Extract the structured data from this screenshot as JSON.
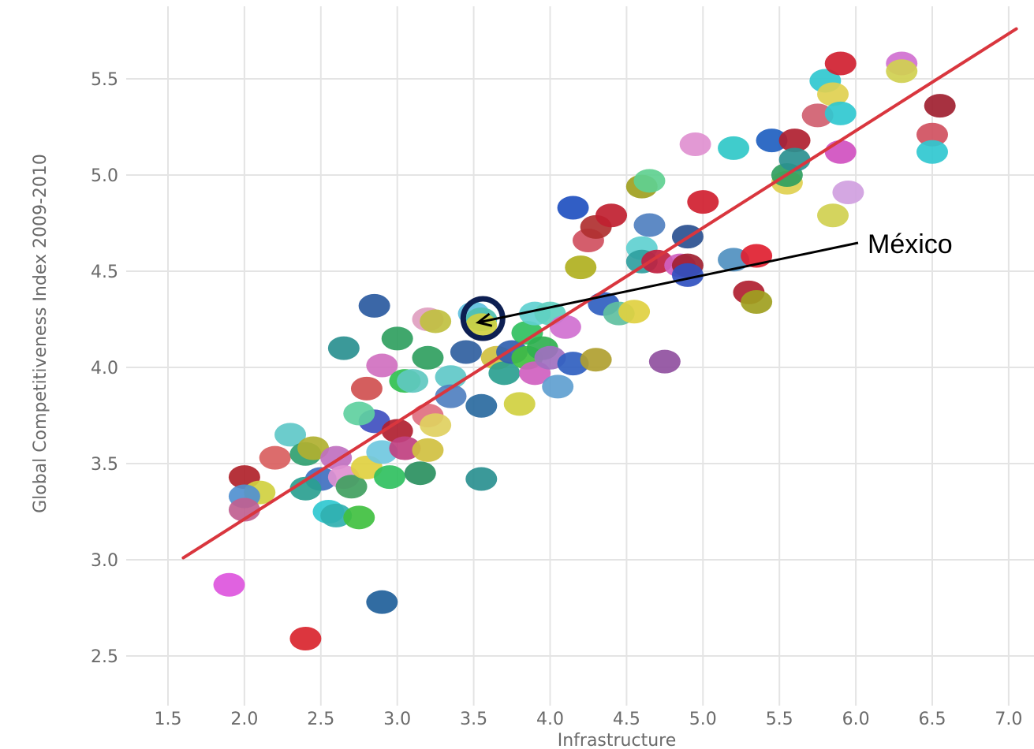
{
  "chart_data": {
    "type": "scatter",
    "title": "",
    "xlabel": "Infrastructure",
    "ylabel": "Global Competitiveness Index 2009-2010",
    "xlim": [
      1.5,
      7.0
    ],
    "ylim": [
      2.5,
      5.5
    ],
    "x_ticks": [
      "1.5",
      "2.0",
      "2.5",
      "3.0",
      "3.5",
      "4.0",
      "4.5",
      "5.0",
      "5.5",
      "6.0",
      "6.5",
      "7.0"
    ],
    "y_ticks": [
      "2.5",
      "3.0",
      "3.5",
      "4.0",
      "4.5",
      "5.0",
      "5.5"
    ],
    "grid": true,
    "trend_line": {
      "color": "#d9363e",
      "start": [
        1.6,
        3.01
      ],
      "end": [
        7.05,
        5.76
      ]
    },
    "annotation": {
      "label": "México",
      "point": [
        3.55,
        4.25
      ]
    },
    "points": [
      {
        "x": 1.9,
        "y": 2.87,
        "color": "#dd55dd"
      },
      {
        "x": 2.4,
        "y": 2.59,
        "color": "#d9252e"
      },
      {
        "x": 2.9,
        "y": 2.78,
        "color": "#1f5f9a"
      },
      {
        "x": 2.0,
        "y": 3.43,
        "color": "#b0222a"
      },
      {
        "x": 2.1,
        "y": 3.35,
        "color": "#d0d040"
      },
      {
        "x": 2.0,
        "y": 3.33,
        "color": "#5090d0"
      },
      {
        "x": 2.0,
        "y": 3.26,
        "color": "#c06090"
      },
      {
        "x": 2.2,
        "y": 3.53,
        "color": "#d96060"
      },
      {
        "x": 2.3,
        "y": 3.65,
        "color": "#60c8c8"
      },
      {
        "x": 2.4,
        "y": 3.55,
        "color": "#30a070"
      },
      {
        "x": 2.45,
        "y": 3.58,
        "color": "#b0b030"
      },
      {
        "x": 2.5,
        "y": 3.42,
        "color": "#4070c0"
      },
      {
        "x": 2.4,
        "y": 3.37,
        "color": "#2aa090"
      },
      {
        "x": 2.55,
        "y": 3.25,
        "color": "#30c8d0"
      },
      {
        "x": 2.6,
        "y": 3.23,
        "color": "#30b0b0"
      },
      {
        "x": 2.6,
        "y": 3.53,
        "color": "#c070c0"
      },
      {
        "x": 2.65,
        "y": 3.43,
        "color": "#e090d0"
      },
      {
        "x": 2.7,
        "y": 3.38,
        "color": "#40a060"
      },
      {
        "x": 2.75,
        "y": 3.22,
        "color": "#40c040"
      },
      {
        "x": 2.8,
        "y": 3.48,
        "color": "#e0d040"
      },
      {
        "x": 2.85,
        "y": 3.72,
        "color": "#4050c0"
      },
      {
        "x": 2.75,
        "y": 3.76,
        "color": "#60d0a0"
      },
      {
        "x": 2.8,
        "y": 3.89,
        "color": "#d05050"
      },
      {
        "x": 2.9,
        "y": 3.56,
        "color": "#70c8e0"
      },
      {
        "x": 2.95,
        "y": 3.43,
        "color": "#30c060"
      },
      {
        "x": 2.65,
        "y": 4.1,
        "color": "#2a9090"
      },
      {
        "x": 2.85,
        "y": 4.32,
        "color": "#2a5aa0"
      },
      {
        "x": 2.9,
        "y": 4.01,
        "color": "#d070c0"
      },
      {
        "x": 3.0,
        "y": 4.15,
        "color": "#30a060"
      },
      {
        "x": 3.0,
        "y": 3.67,
        "color": "#b02030"
      },
      {
        "x": 3.05,
        "y": 3.58,
        "color": "#c04080"
      },
      {
        "x": 3.05,
        "y": 3.93,
        "color": "#30c050"
      },
      {
        "x": 3.1,
        "y": 3.93,
        "color": "#60c8c0"
      },
      {
        "x": 3.15,
        "y": 3.45,
        "color": "#2a9060"
      },
      {
        "x": 3.2,
        "y": 3.57,
        "color": "#d0c040"
      },
      {
        "x": 3.2,
        "y": 4.05,
        "color": "#30a060"
      },
      {
        "x": 3.2,
        "y": 3.75,
        "color": "#e07080"
      },
      {
        "x": 3.25,
        "y": 3.7,
        "color": "#e0d060"
      },
      {
        "x": 3.2,
        "y": 4.25,
        "color": "#e0a0c0"
      },
      {
        "x": 3.25,
        "y": 4.24,
        "color": "#c0c040"
      },
      {
        "x": 3.35,
        "y": 3.95,
        "color": "#60c8c8"
      },
      {
        "x": 3.35,
        "y": 3.85,
        "color": "#5080c0"
      },
      {
        "x": 3.45,
        "y": 4.08,
        "color": "#3060a0"
      },
      {
        "x": 3.5,
        "y": 4.28,
        "color": "#60c0e0"
      },
      {
        "x": 3.55,
        "y": 4.25,
        "color": "#50c0b0"
      },
      {
        "x": 3.55,
        "y": 4.22,
        "color": "#d0d040"
      },
      {
        "x": 3.55,
        "y": 3.8,
        "color": "#2a6aa0"
      },
      {
        "x": 3.55,
        "y": 3.42,
        "color": "#2a9090"
      },
      {
        "x": 3.65,
        "y": 4.05,
        "color": "#d0c040"
      },
      {
        "x": 3.7,
        "y": 3.97,
        "color": "#2aa090"
      },
      {
        "x": 3.75,
        "y": 4.08,
        "color": "#3060b0"
      },
      {
        "x": 3.8,
        "y": 3.81,
        "color": "#d0d040"
      },
      {
        "x": 3.85,
        "y": 4.18,
        "color": "#30c060"
      },
      {
        "x": 3.85,
        "y": 4.05,
        "color": "#40c040"
      },
      {
        "x": 3.9,
        "y": 3.97,
        "color": "#d060c0"
      },
      {
        "x": 3.9,
        "y": 4.28,
        "color": "#60d0d0"
      },
      {
        "x": 3.95,
        "y": 4.1,
        "color": "#30b050"
      },
      {
        "x": 4.0,
        "y": 4.05,
        "color": "#a070c0"
      },
      {
        "x": 4.0,
        "y": 4.28,
        "color": "#60d0c0"
      },
      {
        "x": 4.05,
        "y": 3.9,
        "color": "#60a0d0"
      },
      {
        "x": 4.1,
        "y": 4.21,
        "color": "#d070d0"
      },
      {
        "x": 4.15,
        "y": 4.02,
        "color": "#3060c0"
      },
      {
        "x": 4.15,
        "y": 4.83,
        "color": "#2050c0"
      },
      {
        "x": 4.2,
        "y": 4.52,
        "color": "#b0b020"
      },
      {
        "x": 4.25,
        "y": 4.66,
        "color": "#d05060"
      },
      {
        "x": 4.3,
        "y": 4.73,
        "color": "#b03030"
      },
      {
        "x": 4.3,
        "y": 4.04,
        "color": "#b0a030"
      },
      {
        "x": 4.35,
        "y": 4.33,
        "color": "#3060c0"
      },
      {
        "x": 4.4,
        "y": 4.79,
        "color": "#c02030"
      },
      {
        "x": 4.45,
        "y": 4.28,
        "color": "#60c0a0"
      },
      {
        "x": 4.55,
        "y": 4.29,
        "color": "#e0d040"
      },
      {
        "x": 4.6,
        "y": 4.62,
        "color": "#60d0d0"
      },
      {
        "x": 4.6,
        "y": 4.55,
        "color": "#30a0a0"
      },
      {
        "x": 4.6,
        "y": 4.94,
        "color": "#a0a020"
      },
      {
        "x": 4.65,
        "y": 4.97,
        "color": "#60d090"
      },
      {
        "x": 4.65,
        "y": 4.74,
        "color": "#5080c0"
      },
      {
        "x": 4.7,
        "y": 4.55,
        "color": "#c02040"
      },
      {
        "x": 4.75,
        "y": 4.03,
        "color": "#9050a0"
      },
      {
        "x": 4.85,
        "y": 4.53,
        "color": "#d060c0"
      },
      {
        "x": 4.9,
        "y": 4.53,
        "color": "#a02030"
      },
      {
        "x": 4.9,
        "y": 4.48,
        "color": "#3050c0"
      },
      {
        "x": 4.9,
        "y": 4.68,
        "color": "#2a5090"
      },
      {
        "x": 4.95,
        "y": 5.16,
        "color": "#e090d0"
      },
      {
        "x": 5.0,
        "y": 4.86,
        "color": "#d02030"
      },
      {
        "x": 5.2,
        "y": 5.14,
        "color": "#30c8c8"
      },
      {
        "x": 5.2,
        "y": 4.56,
        "color": "#5090c0"
      },
      {
        "x": 5.3,
        "y": 4.39,
        "color": "#b02030"
      },
      {
        "x": 5.35,
        "y": 4.34,
        "color": "#a0a020"
      },
      {
        "x": 5.35,
        "y": 4.58,
        "color": "#e02030"
      },
      {
        "x": 5.45,
        "y": 5.18,
        "color": "#2060c0"
      },
      {
        "x": 5.55,
        "y": 4.96,
        "color": "#e0d050"
      },
      {
        "x": 5.55,
        "y": 5.0,
        "color": "#30a060"
      },
      {
        "x": 5.6,
        "y": 5.18,
        "color": "#b02030"
      },
      {
        "x": 5.6,
        "y": 5.08,
        "color": "#2a9090"
      },
      {
        "x": 5.75,
        "y": 5.31,
        "color": "#d06070"
      },
      {
        "x": 5.8,
        "y": 5.49,
        "color": "#30c8d0"
      },
      {
        "x": 5.85,
        "y": 5.42,
        "color": "#e0d050"
      },
      {
        "x": 5.85,
        "y": 4.79,
        "color": "#d0d050"
      },
      {
        "x": 5.9,
        "y": 5.12,
        "color": "#d050c0"
      },
      {
        "x": 5.9,
        "y": 5.58,
        "color": "#d02030"
      },
      {
        "x": 5.9,
        "y": 5.32,
        "color": "#30c8d0"
      },
      {
        "x": 5.95,
        "y": 4.91,
        "color": "#d0a0e0"
      },
      {
        "x": 6.3,
        "y": 5.58,
        "color": "#d070d0"
      },
      {
        "x": 6.3,
        "y": 5.54,
        "color": "#d0d050"
      },
      {
        "x": 6.5,
        "y": 5.21,
        "color": "#d05060"
      },
      {
        "x": 6.5,
        "y": 5.12,
        "color": "#30c8d0"
      },
      {
        "x": 6.55,
        "y": 5.36,
        "color": "#a02030"
      }
    ]
  }
}
